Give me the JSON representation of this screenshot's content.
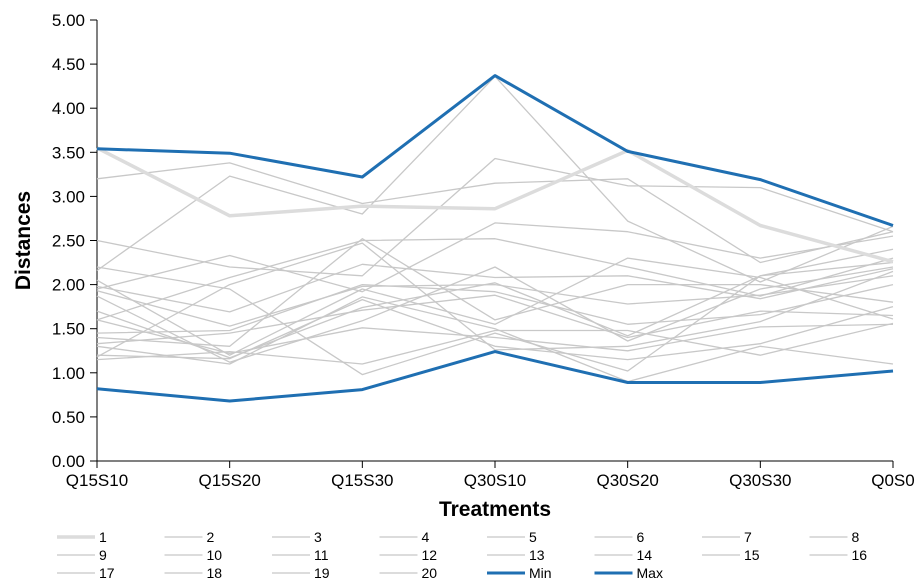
{
  "chart_data": {
    "type": "line",
    "title": "",
    "xlabel": "Treatments",
    "ylabel": "Distances",
    "ylim": [
      0,
      5
    ],
    "y_ticks": [
      "0.00",
      "0.50",
      "1.00",
      "1.50",
      "2.00",
      "2.50",
      "3.00",
      "3.50",
      "4.00",
      "4.50",
      "5.00"
    ],
    "categories": [
      "Q15S10",
      "Q15S20",
      "Q15S30",
      "Q30S10",
      "Q30S20",
      "Q30S30",
      "Q0S0"
    ],
    "grid": false,
    "legend_position": "bottom",
    "colors": {
      "individual": "#c8c8c8",
      "series1": "#dcdcdc",
      "minmax": "#1f6fb2"
    },
    "series": [
      {
        "name": "1",
        "values": [
          3.55,
          2.78,
          2.89,
          2.86,
          3.52,
          2.67,
          2.26
        ]
      },
      {
        "name": "2",
        "values": [
          3.2,
          3.38,
          2.92,
          3.15,
          3.2,
          2.25,
          2.6
        ]
      },
      {
        "name": "3",
        "values": [
          2.16,
          3.23,
          2.8,
          4.36,
          2.72,
          2.03,
          2.66
        ]
      },
      {
        "name": "4",
        "values": [
          2.5,
          2.2,
          2.1,
          3.43,
          3.12,
          3.1,
          2.6
        ]
      },
      {
        "name": "5",
        "values": [
          1.95,
          2.33,
          1.92,
          2.7,
          2.6,
          2.3,
          2.55
        ]
      },
      {
        "name": "6",
        "values": [
          1.6,
          2.08,
          2.5,
          2.52,
          2.2,
          1.87,
          2.3
        ]
      },
      {
        "name": "7",
        "values": [
          1.98,
          1.69,
          2.23,
          2.08,
          2.1,
          1.84,
          2.18
        ]
      },
      {
        "name": "8",
        "values": [
          1.93,
          1.53,
          1.98,
          2.0,
          1.78,
          1.88,
          2.1
        ]
      },
      {
        "name": "9",
        "values": [
          1.4,
          1.3,
          2.52,
          1.6,
          2.0,
          2.0,
          1.8
        ]
      },
      {
        "name": "10",
        "values": [
          2.05,
          1.2,
          1.95,
          1.55,
          2.3,
          2.08,
          1.61
        ]
      },
      {
        "name": "11",
        "values": [
          1.7,
          1.17,
          1.74,
          2.02,
          1.42,
          2.1,
          2.4
        ]
      },
      {
        "name": "12",
        "values": [
          1.87,
          1.12,
          1.59,
          2.2,
          1.36,
          1.95,
          2.2
        ]
      },
      {
        "name": "13",
        "values": [
          1.45,
          1.48,
          2.0,
          1.92,
          1.55,
          1.66,
          2.0
        ]
      },
      {
        "name": "14",
        "values": [
          1.33,
          1.45,
          1.71,
          1.88,
          1.4,
          1.7,
          1.65
        ]
      },
      {
        "name": "15",
        "values": [
          1.6,
          1.22,
          1.51,
          1.4,
          1.25,
          1.52,
          1.55
        ]
      },
      {
        "name": "16",
        "values": [
          1.2,
          1.16,
          1.83,
          1.3,
          1.15,
          1.33,
          1.75
        ]
      },
      {
        "name": "17",
        "values": [
          1.15,
          1.24,
          1.1,
          1.48,
          1.48,
          1.2,
          1.56
        ]
      },
      {
        "name": "18",
        "values": [
          2.2,
          1.95,
          0.98,
          1.45,
          1.02,
          2.1,
          2.25
        ]
      },
      {
        "name": "19",
        "values": [
          1.3,
          1.1,
          1.86,
          1.5,
          0.9,
          1.3,
          1.1
        ]
      },
      {
        "name": "20",
        "values": [
          1.18,
          2.0,
          2.47,
          1.26,
          1.3,
          1.58,
          2.15
        ]
      },
      {
        "name": "Min",
        "values": [
          0.82,
          0.68,
          0.81,
          1.24,
          0.89,
          0.89,
          1.02
        ]
      },
      {
        "name": "Max",
        "values": [
          3.54,
          3.49,
          3.22,
          4.37,
          3.51,
          3.19,
          2.67
        ]
      }
    ]
  }
}
